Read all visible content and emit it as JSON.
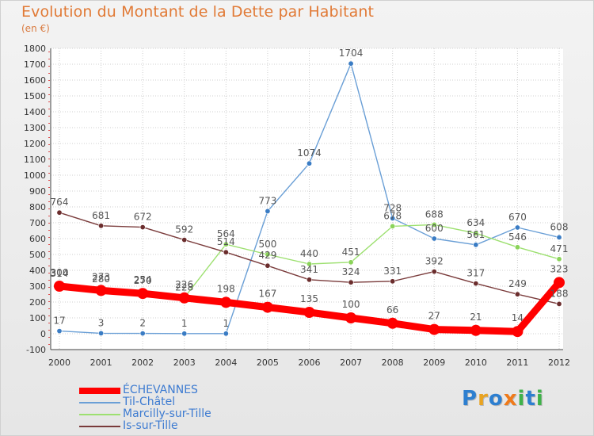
{
  "chart_data": {
    "type": "line",
    "title": "Evolution du Montant de la Dette par Habitant",
    "subtitle": "(en €)",
    "xlabel": "",
    "ylabel": "",
    "categories": [
      "2000",
      "2001",
      "2002",
      "2003",
      "2004",
      "2005",
      "2006",
      "2007",
      "2008",
      "2009",
      "2010",
      "2011",
      "2012"
    ],
    "ylim": [
      -100,
      1800
    ],
    "yticks": [
      -100,
      0,
      100,
      200,
      300,
      400,
      500,
      600,
      700,
      800,
      900,
      1000,
      1100,
      1200,
      1300,
      1400,
      1500,
      1600,
      1700,
      1800
    ],
    "grid": true,
    "legend_position": "bottom-left",
    "series": [
      {
        "name": "Til-Châtel",
        "color": "#6a9fd6",
        "marker_color": "#3a7cc4",
        "values": [
          17,
          3,
          2,
          1,
          1,
          773,
          1074,
          1704,
          728,
          600,
          561,
          670,
          608
        ]
      },
      {
        "name": "Marcilly-sur-Tille",
        "color": "#9de070",
        "marker_color": "#8bd35a",
        "values": [
          314,
          280,
          270,
          228,
          564,
          500,
          440,
          451,
          678,
          688,
          634,
          546,
          471
        ]
      },
      {
        "name": "Is-sur-Tille",
        "color": "#7a3b3b",
        "marker_color": "#6b2d2d",
        "values": [
          764,
          681,
          672,
          592,
          514,
          429,
          341,
          324,
          331,
          392,
          317,
          249,
          188
        ]
      },
      {
        "name": "ÉCHEVANNES",
        "color": "#ff0000",
        "marker_color": "#ff0000",
        "values": [
          300,
          273,
          254,
          226,
          198,
          167,
          135,
          100,
          66,
          27,
          21,
          14,
          323
        ]
      }
    ],
    "legend_order": [
      "ÉCHEVANNES",
      "Til-Châtel",
      "Marcilly-sur-Tille",
      "Is-sur-Tille"
    ]
  },
  "logo": {
    "letters": [
      "P",
      "r",
      "o",
      "x",
      "i",
      "t",
      "i"
    ],
    "colors": [
      "#2d7fd0",
      "#e9a320",
      "#2d7fd0",
      "#ef7a1a",
      "#3fb24a",
      "#2d7fd0",
      "#3fb24a"
    ]
  }
}
